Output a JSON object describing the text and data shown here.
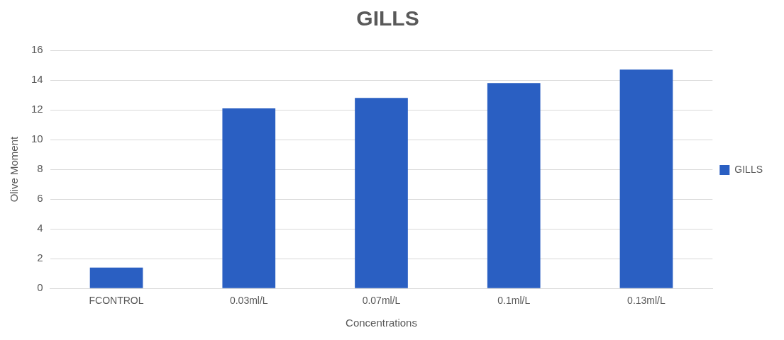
{
  "chart_data": {
    "type": "bar",
    "title": "GILLS",
    "xlabel": "Concentrations",
    "ylabel": "Olive Moment",
    "categories": [
      "FCONTROL",
      "0.03ml/L",
      "0.07ml/L",
      "0.1ml/L",
      "0.13ml/L"
    ],
    "series": [
      {
        "name": "GILLS",
        "color": "#2a5fc2",
        "values": [
          1.4,
          12.1,
          12.8,
          13.8,
          14.7
        ]
      }
    ],
    "ylim": [
      0,
      16
    ],
    "yticks": [
      0,
      2,
      4,
      6,
      8,
      10,
      12,
      14,
      16
    ],
    "grid": "y",
    "legend": "right"
  }
}
